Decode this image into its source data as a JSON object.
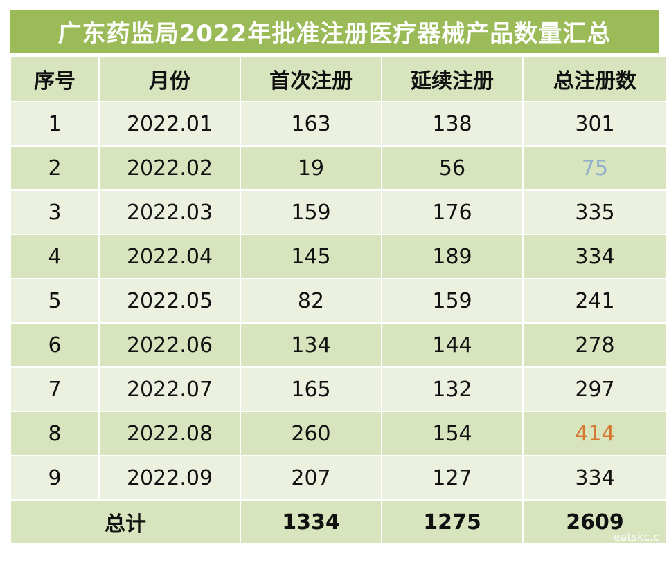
{
  "title": "广东药监局2022年批准注册医疗器械产品数量汇总",
  "headers": [
    "序号",
    "月份",
    "首次注册",
    "延续注册",
    "总注册数"
  ],
  "rows": [
    {
      "no": "1",
      "month": "2022.01",
      "first": "163",
      "renew": "138",
      "total": "301"
    },
    {
      "no": "2",
      "month": "2022.02",
      "first": "19",
      "renew": "56",
      "total": "75",
      "total_color": "#8fb0cc"
    },
    {
      "no": "3",
      "month": "2022.03",
      "first": "159",
      "renew": "176",
      "total": "335"
    },
    {
      "no": "4",
      "month": "2022.04",
      "first": "145",
      "renew": "189",
      "total": "334"
    },
    {
      "no": "5",
      "month": "2022.05",
      "first": "82",
      "renew": "159",
      "total": "241"
    },
    {
      "no": "6",
      "month": "2022.06",
      "first": "134",
      "renew": "144",
      "total": "278"
    },
    {
      "no": "7",
      "month": "2022.07",
      "first": "165",
      "renew": "132",
      "total": "297"
    },
    {
      "no": "8",
      "month": "2022.08",
      "first": "260",
      "renew": "154",
      "total": "414",
      "total_color": "#d4782e"
    },
    {
      "no": "9",
      "month": "2022.09",
      "first": "207",
      "renew": "127",
      "total": "334"
    }
  ],
  "footer": {
    "label": "总计",
    "first": "1334",
    "renew": "1275",
    "total": "2609"
  },
  "watermark": "eatskc.c",
  "colors": {
    "title_bg": "#9bbb59",
    "header_bg": "#d7e4bd",
    "row_light": "#ebf1de",
    "row_dark": "#d7e4bd"
  }
}
